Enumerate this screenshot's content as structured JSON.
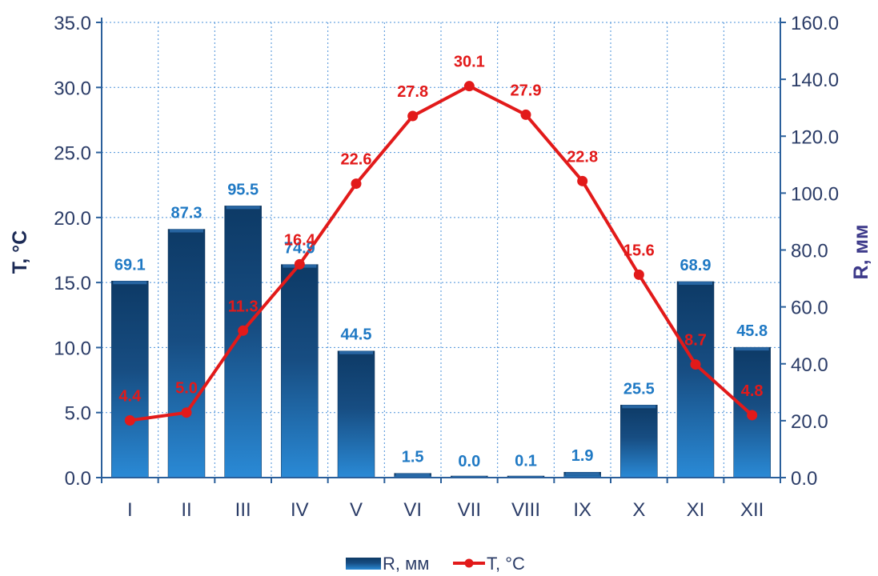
{
  "chart_data": {
    "type": "bar",
    "categories": [
      "I",
      "II",
      "III",
      "IV",
      "V",
      "VI",
      "VII",
      "VIII",
      "IX",
      "X",
      "XI",
      "XII"
    ],
    "series": [
      {
        "name": "R, мм",
        "type": "bar",
        "axis": "right",
        "values": [
          69.1,
          87.3,
          95.5,
          74.9,
          44.5,
          1.5,
          0.0,
          0.1,
          1.9,
          25.5,
          68.9,
          45.8
        ],
        "labels": [
          "69.1",
          "87.3",
          "95.5",
          "74.9",
          "44.5",
          "1.5",
          "0.0",
          "0.1",
          "1.9",
          "25.5",
          "68.9",
          "45.8"
        ],
        "color": "#1e5f99"
      },
      {
        "name": "T, °C",
        "type": "line",
        "axis": "left",
        "values": [
          4.4,
          5.0,
          11.3,
          16.4,
          22.6,
          27.8,
          30.1,
          27.9,
          22.8,
          15.6,
          8.7,
          4.8
        ],
        "labels": [
          "4.4",
          "5.0",
          "11.3",
          "16.4",
          "22.6",
          "27.8",
          "30.1",
          "27.9",
          "22.8",
          "15.6",
          "8.7",
          "4.8"
        ],
        "color": "#e21a1a"
      }
    ],
    "y_left": {
      "label": "T, °C",
      "range": [
        0,
        35
      ],
      "ticks": [
        "0.0",
        "5.0",
        "10.0",
        "15.0",
        "20.0",
        "25.0",
        "30.0",
        "35.0"
      ]
    },
    "y_right": {
      "label": "R, мм",
      "range": [
        0,
        160
      ],
      "ticks": [
        "0.0",
        "20.0",
        "40.0",
        "60.0",
        "80.0",
        "100.0",
        "120.0",
        "140.0",
        "160.0"
      ]
    },
    "grid": true,
    "legend": {
      "position": "bottom",
      "entries": [
        "R, мм",
        "T, °C"
      ]
    }
  }
}
